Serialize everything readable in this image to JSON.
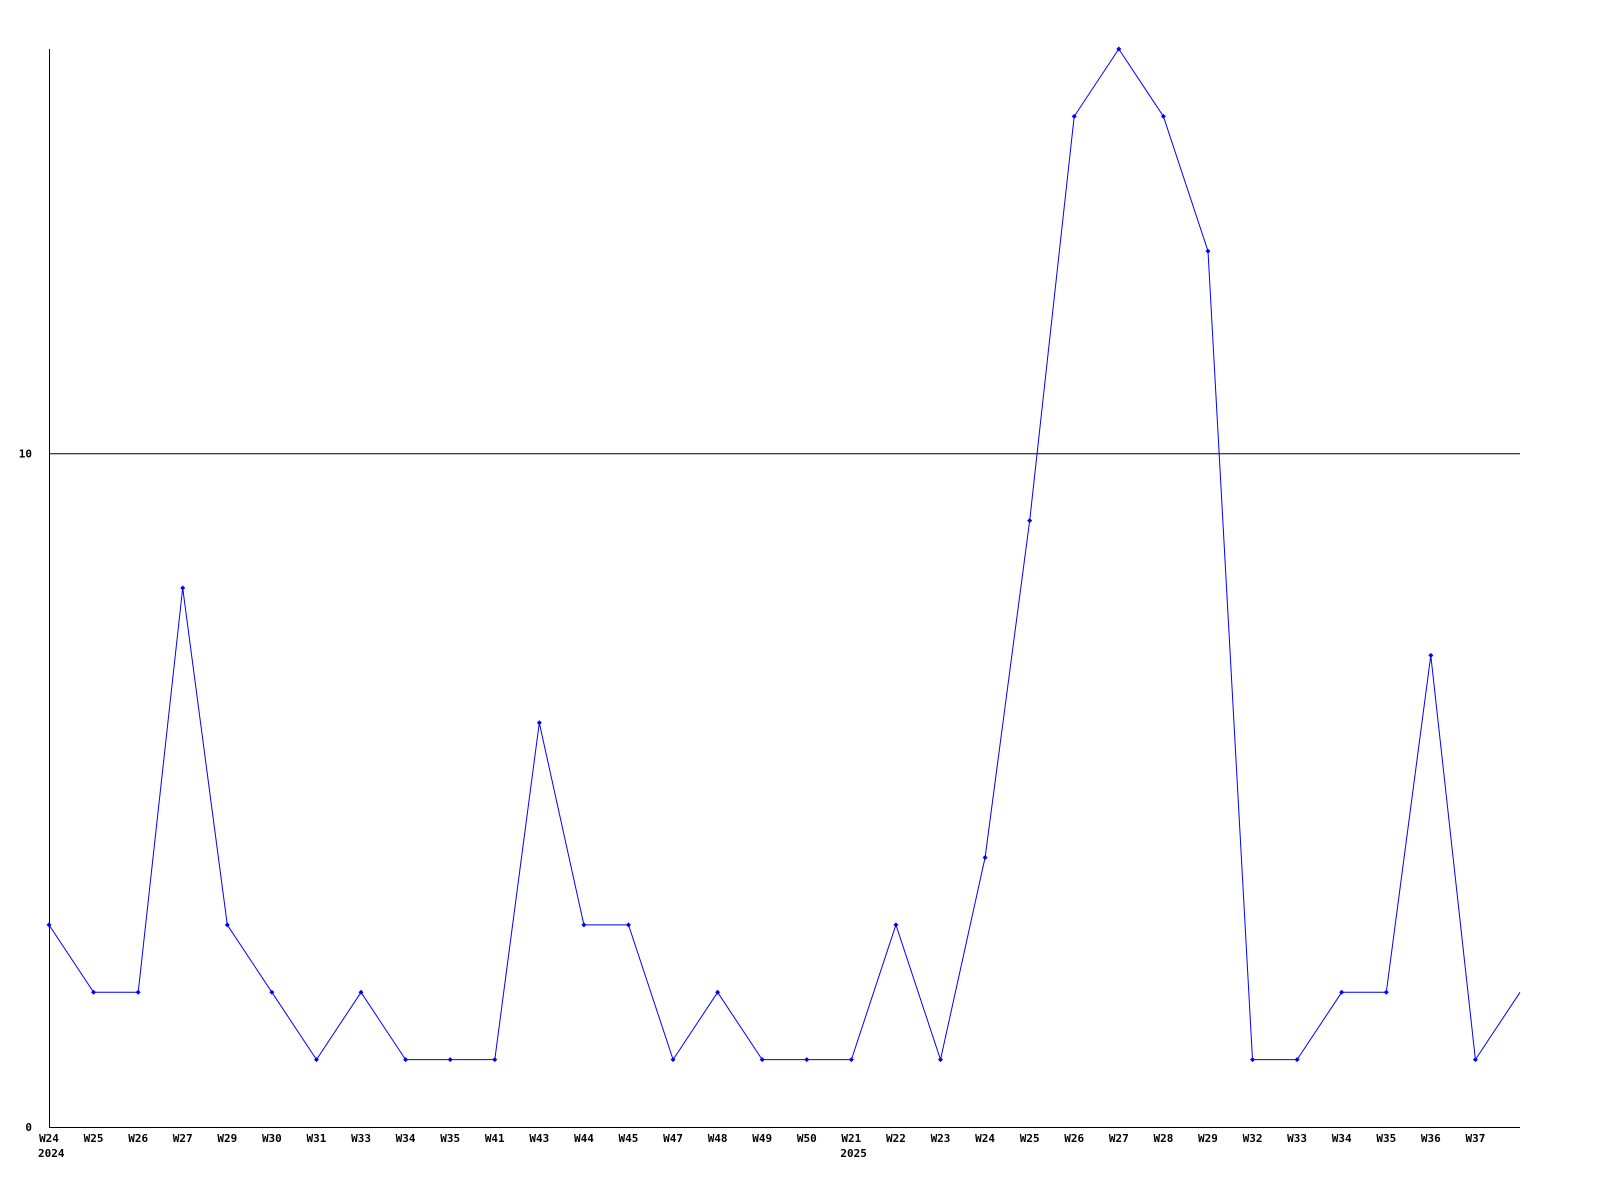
{
  "chart_data": {
    "type": "line",
    "title": "",
    "xlabel": "",
    "ylabel": "",
    "ylim": [
      0,
      16
    ],
    "y_ticks": [
      0,
      10
    ],
    "grid": "horizontal line at 10",
    "legend": "none",
    "x": [
      "W24",
      "W25",
      "W26",
      "W27",
      "W29",
      "W30",
      "W31",
      "W33",
      "W34",
      "W35",
      "W41",
      "W43",
      "W44",
      "W45",
      "W47",
      "W48",
      "W49",
      "W50",
      "W21",
      "W22",
      "W23",
      "W24",
      "W25",
      "W26",
      "W27",
      "W28",
      "W29",
      "W32",
      "W33",
      "W34",
      "W35",
      "W36",
      "W37",
      ""
    ],
    "year_labels": [
      {
        "index": 0,
        "label": "2024"
      },
      {
        "index": 18,
        "label": "2025"
      }
    ],
    "series": [
      {
        "values": [
          3,
          2,
          2,
          8,
          3,
          2,
          1,
          2,
          1,
          1,
          1,
          6,
          3,
          3,
          1,
          2,
          1,
          1,
          1,
          3,
          1,
          4,
          9,
          15,
          16,
          15,
          13,
          1,
          1,
          2,
          2,
          7,
          1,
          2
        ],
        "color": "#0000ff"
      }
    ]
  }
}
